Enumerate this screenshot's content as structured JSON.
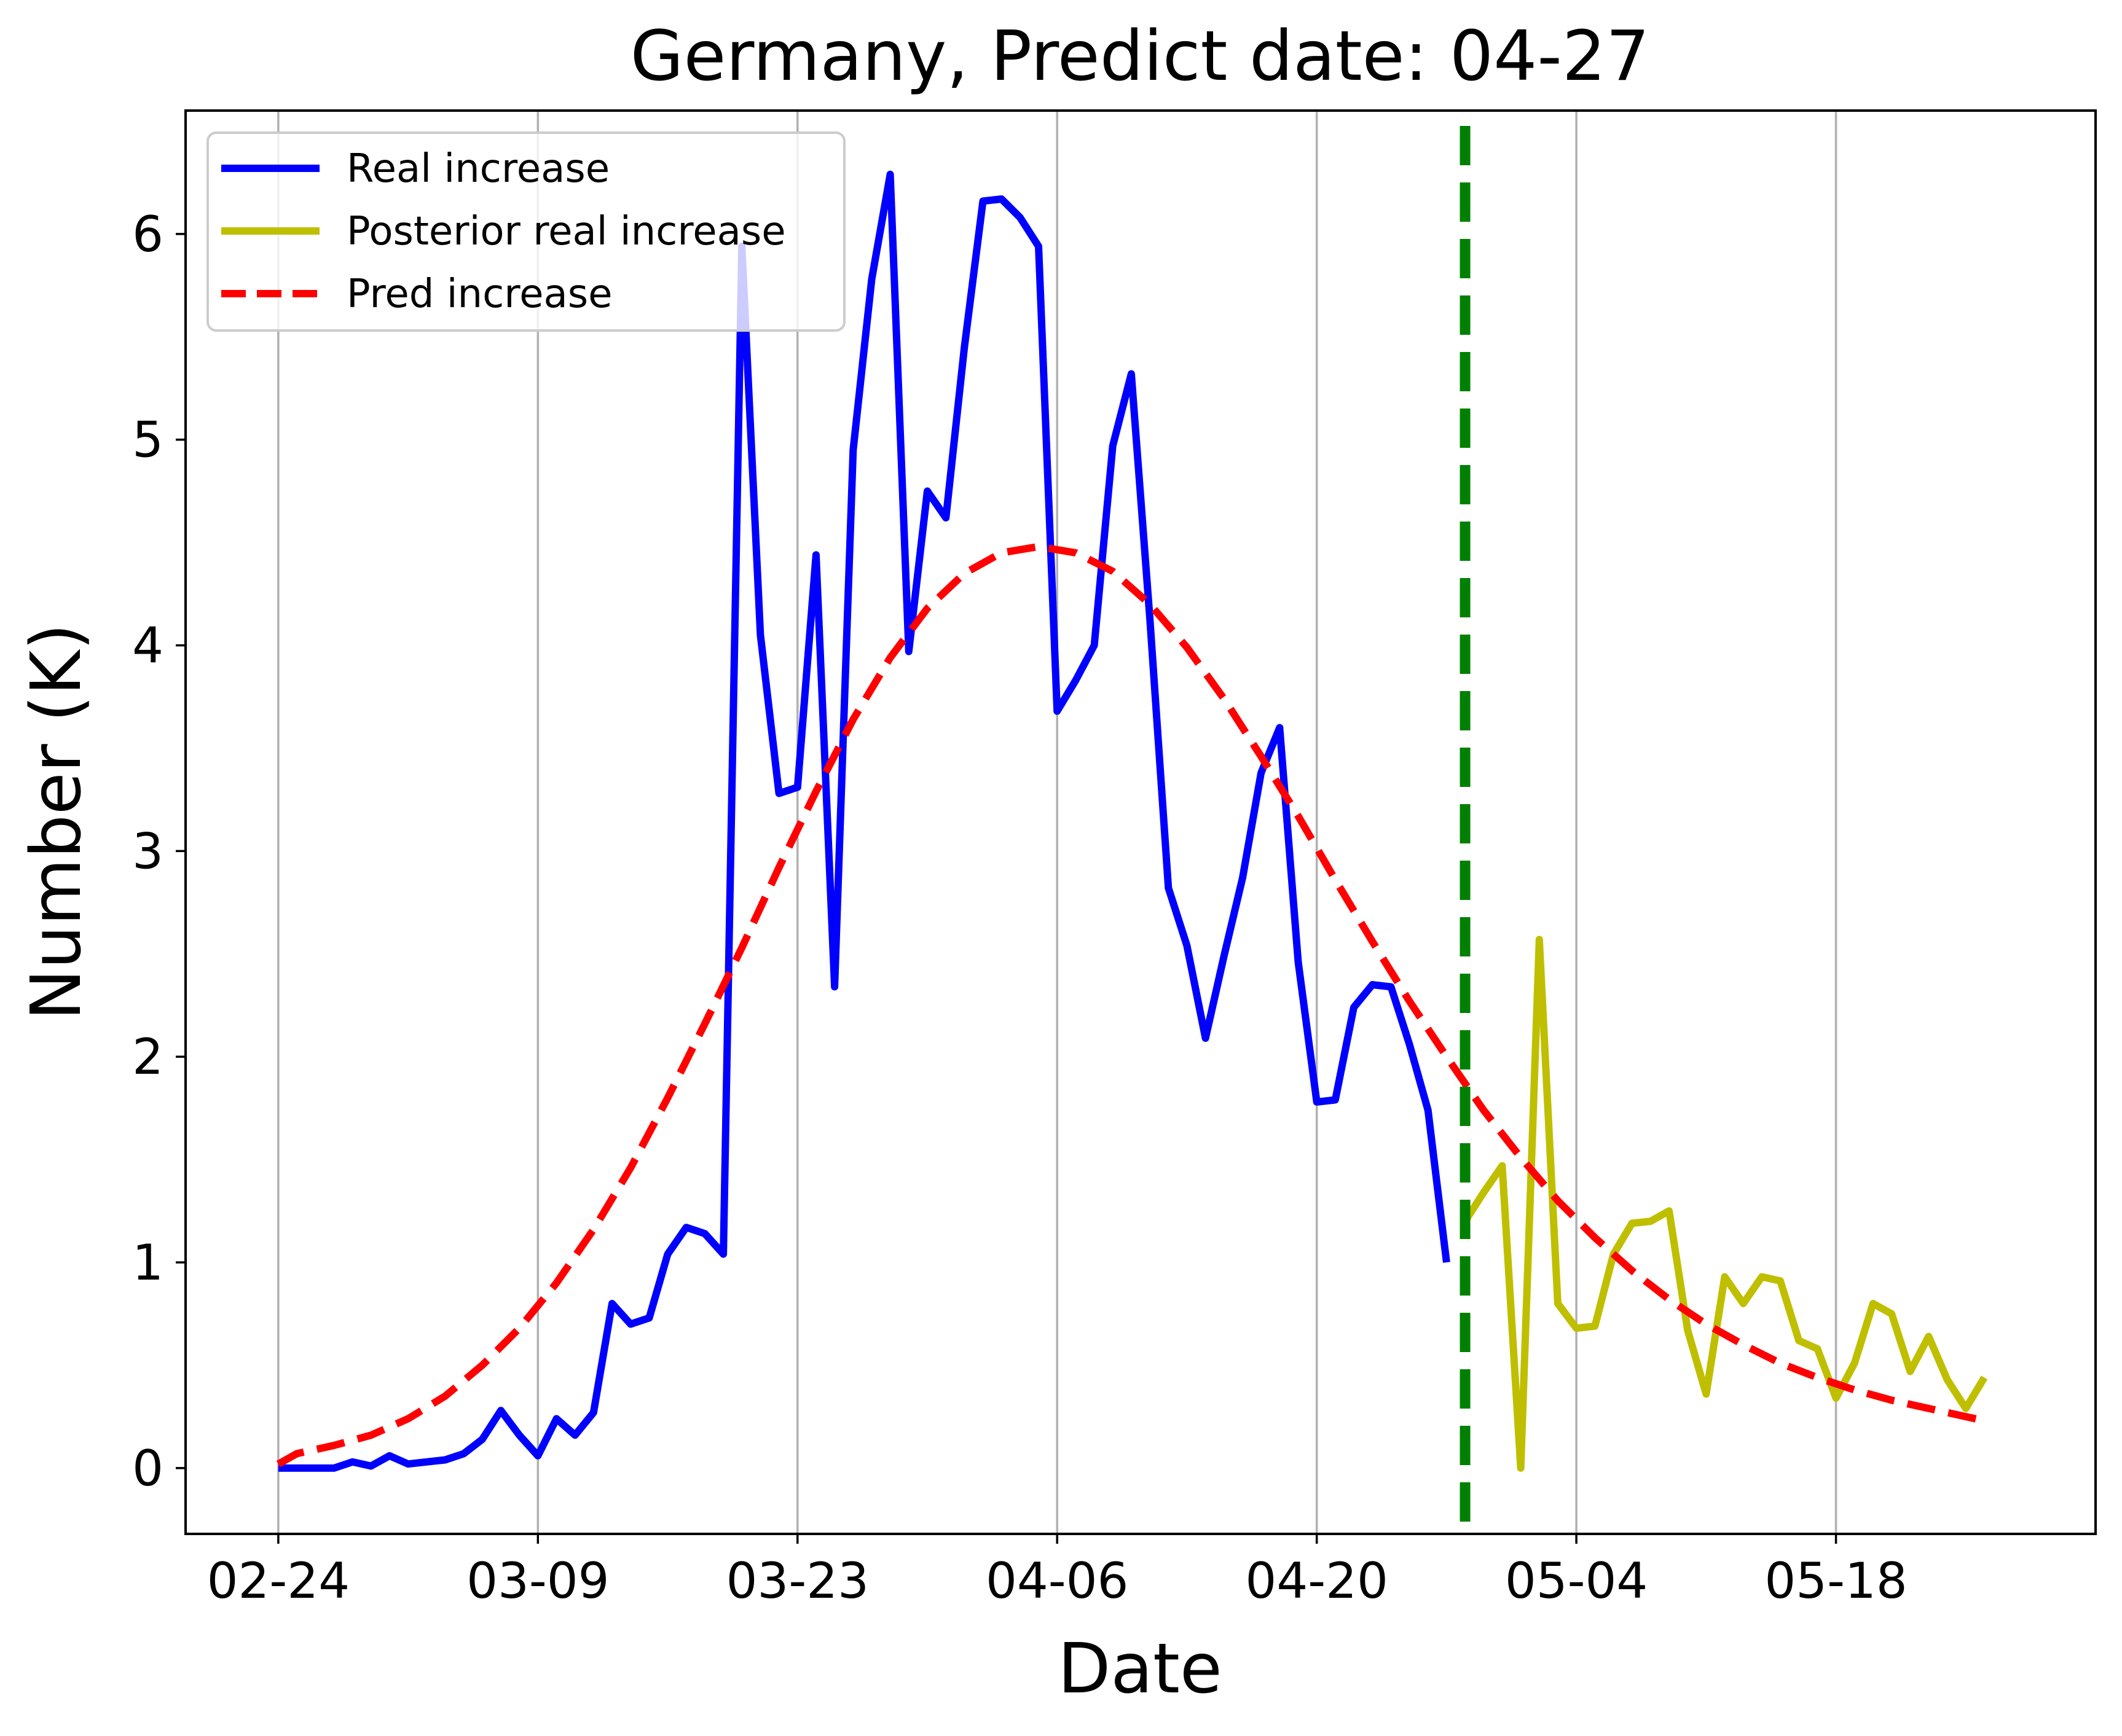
{
  "chart_data": {
    "type": "line",
    "title": "Germany, Predict date: 04-27",
    "xlabel": "Date",
    "ylabel": "Number (K)",
    "year": 2020,
    "x_range": [
      "2020-02-19",
      "2020-06-01"
    ],
    "ylim": [
      -0.32,
      6.6
    ],
    "x_ticks": [
      {
        "date": "2020-02-24",
        "label": "02-24"
      },
      {
        "date": "2020-03-09",
        "label": "03-09"
      },
      {
        "date": "2020-03-23",
        "label": "03-23"
      },
      {
        "date": "2020-04-06",
        "label": "04-06"
      },
      {
        "date": "2020-04-20",
        "label": "04-20"
      },
      {
        "date": "2020-05-04",
        "label": "05-04"
      },
      {
        "date": "2020-05-18",
        "label": "05-18"
      }
    ],
    "y_ticks": [
      0,
      1,
      2,
      3,
      4,
      5,
      6
    ],
    "grid": "vertical",
    "legend_position": "top-left",
    "prediction_date": "2020-04-28",
    "prediction_line_color": "#008000",
    "series": [
      {
        "name": "Real increase",
        "color": "#0000ff",
        "style": "solid",
        "points": [
          [
            "2020-02-24",
            0.0
          ],
          [
            "2020-02-25",
            0.0
          ],
          [
            "2020-02-26",
            0.0
          ],
          [
            "2020-02-27",
            0.0
          ],
          [
            "2020-02-28",
            0.03
          ],
          [
            "2020-02-29",
            0.01
          ],
          [
            "2020-03-01",
            0.06
          ],
          [
            "2020-03-02",
            0.02
          ],
          [
            "2020-03-03",
            0.03
          ],
          [
            "2020-03-04",
            0.04
          ],
          [
            "2020-03-05",
            0.07
          ],
          [
            "2020-03-06",
            0.14
          ],
          [
            "2020-03-07",
            0.28
          ],
          [
            "2020-03-08",
            0.16
          ],
          [
            "2020-03-09",
            0.06
          ],
          [
            "2020-03-10",
            0.24
          ],
          [
            "2020-03-11",
            0.16
          ],
          [
            "2020-03-12",
            0.27
          ],
          [
            "2020-03-13",
            0.8
          ],
          [
            "2020-03-14",
            0.7
          ],
          [
            "2020-03-15",
            0.73
          ],
          [
            "2020-03-16",
            1.04
          ],
          [
            "2020-03-17",
            1.17
          ],
          [
            "2020-03-18",
            1.14
          ],
          [
            "2020-03-19",
            1.04
          ],
          [
            "2020-03-20",
            5.94
          ],
          [
            "2020-03-21",
            4.05
          ],
          [
            "2020-03-22",
            3.28
          ],
          [
            "2020-03-23",
            3.31
          ],
          [
            "2020-03-24",
            4.44
          ],
          [
            "2020-03-25",
            2.34
          ],
          [
            "2020-03-26",
            4.95
          ],
          [
            "2020-03-27",
            5.78
          ],
          [
            "2020-03-28",
            6.29
          ],
          [
            "2020-03-29",
            3.97
          ],
          [
            "2020-03-30",
            4.75
          ],
          [
            "2020-03-31",
            4.62
          ],
          [
            "2020-04-01",
            5.45
          ],
          [
            "2020-04-02",
            6.16
          ],
          [
            "2020-04-03",
            6.17
          ],
          [
            "2020-04-04",
            6.08
          ],
          [
            "2020-04-05",
            5.94
          ],
          [
            "2020-04-06",
            3.68
          ],
          [
            "2020-04-07",
            3.83
          ],
          [
            "2020-04-08",
            4.0
          ],
          [
            "2020-04-09",
            4.97
          ],
          [
            "2020-04-10",
            5.32
          ],
          [
            "2020-04-11",
            4.13
          ],
          [
            "2020-04-12",
            2.82
          ],
          [
            "2020-04-13",
            2.54
          ],
          [
            "2020-04-14",
            2.09
          ],
          [
            "2020-04-15",
            2.49
          ],
          [
            "2020-04-16",
            2.87
          ],
          [
            "2020-04-17",
            3.38
          ],
          [
            "2020-04-18",
            3.6
          ],
          [
            "2020-04-19",
            2.46
          ],
          [
            "2020-04-20",
            1.78
          ],
          [
            "2020-04-21",
            1.79
          ],
          [
            "2020-04-22",
            2.24
          ],
          [
            "2020-04-23",
            2.35
          ],
          [
            "2020-04-24",
            2.34
          ],
          [
            "2020-04-25",
            2.06
          ],
          [
            "2020-04-26",
            1.74
          ],
          [
            "2020-04-27",
            1.0
          ]
        ]
      },
      {
        "name": "Posterior real increase",
        "color": "#bfbf00",
        "style": "solid",
        "points": [
          [
            "2020-04-28",
            1.2
          ],
          [
            "2020-04-29",
            1.34
          ],
          [
            "2020-04-30",
            1.47
          ],
          [
            "2020-05-01",
            0.0
          ],
          [
            "2020-05-02",
            2.57
          ],
          [
            "2020-05-03",
            0.8
          ],
          [
            "2020-05-04",
            0.68
          ],
          [
            "2020-05-05",
            0.69
          ],
          [
            "2020-05-06",
            1.04
          ],
          [
            "2020-05-07",
            1.19
          ],
          [
            "2020-05-08",
            1.2
          ],
          [
            "2020-05-09",
            1.25
          ],
          [
            "2020-05-10",
            0.67
          ],
          [
            "2020-05-11",
            0.36
          ],
          [
            "2020-05-12",
            0.93
          ],
          [
            "2020-05-13",
            0.8
          ],
          [
            "2020-05-14",
            0.93
          ],
          [
            "2020-05-15",
            0.91
          ],
          [
            "2020-05-16",
            0.62
          ],
          [
            "2020-05-17",
            0.58
          ],
          [
            "2020-05-18",
            0.34
          ],
          [
            "2020-05-19",
            0.51
          ],
          [
            "2020-05-20",
            0.8
          ],
          [
            "2020-05-21",
            0.75
          ],
          [
            "2020-05-22",
            0.47
          ],
          [
            "2020-05-23",
            0.64
          ],
          [
            "2020-05-24",
            0.43
          ],
          [
            "2020-05-25",
            0.29
          ],
          [
            "2020-05-26",
            0.44
          ]
        ]
      },
      {
        "name": "Pred increase",
        "color": "#ff0000",
        "style": "dashed",
        "points": [
          [
            "2020-02-24",
            0.02
          ],
          [
            "2020-02-25",
            0.07
          ],
          [
            "2020-02-27",
            0.11
          ],
          [
            "2020-02-29",
            0.16
          ],
          [
            "2020-03-02",
            0.24
          ],
          [
            "2020-03-04",
            0.35
          ],
          [
            "2020-03-06",
            0.5
          ],
          [
            "2020-03-08",
            0.68
          ],
          [
            "2020-03-10",
            0.9
          ],
          [
            "2020-03-12",
            1.16
          ],
          [
            "2020-03-14",
            1.46
          ],
          [
            "2020-03-16",
            1.8
          ],
          [
            "2020-03-18",
            2.16
          ],
          [
            "2020-03-20",
            2.53
          ],
          [
            "2020-03-22",
            2.92
          ],
          [
            "2020-03-24",
            3.29
          ],
          [
            "2020-03-26",
            3.64
          ],
          [
            "2020-03-28",
            3.94
          ],
          [
            "2020-03-30",
            4.18
          ],
          [
            "2020-04-01",
            4.35
          ],
          [
            "2020-04-03",
            4.45
          ],
          [
            "2020-04-05",
            4.48
          ],
          [
            "2020-04-07",
            4.45
          ],
          [
            "2020-04-09",
            4.36
          ],
          [
            "2020-04-11",
            4.2
          ],
          [
            "2020-04-13",
            3.99
          ],
          [
            "2020-04-15",
            3.74
          ],
          [
            "2020-04-17",
            3.46
          ],
          [
            "2020-04-19",
            3.17
          ],
          [
            "2020-04-21",
            2.86
          ],
          [
            "2020-04-23",
            2.56
          ],
          [
            "2020-04-25",
            2.27
          ],
          [
            "2020-04-27",
            2.0
          ],
          [
            "2020-04-29",
            1.74
          ],
          [
            "2020-05-01",
            1.51
          ],
          [
            "2020-05-03",
            1.3
          ],
          [
            "2020-05-05",
            1.12
          ],
          [
            "2020-05-07",
            0.96
          ],
          [
            "2020-05-09",
            0.82
          ],
          [
            "2020-05-11",
            0.7
          ],
          [
            "2020-05-13",
            0.6
          ],
          [
            "2020-05-15",
            0.51
          ],
          [
            "2020-05-17",
            0.44
          ],
          [
            "2020-05-19",
            0.38
          ],
          [
            "2020-05-21",
            0.33
          ],
          [
            "2020-05-23",
            0.29
          ],
          [
            "2020-05-25",
            0.25
          ],
          [
            "2020-05-26",
            0.23
          ]
        ]
      }
    ]
  }
}
